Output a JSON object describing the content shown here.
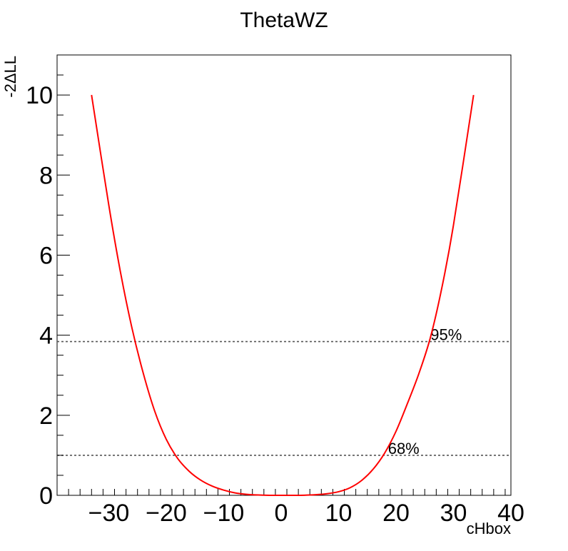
{
  "chart_data": {
    "type": "line",
    "title": "ThetaWZ",
    "xlabel": "cHbox",
    "ylabel": "-2ΔLL",
    "xlim": [
      -39,
      40
    ],
    "ylim": [
      0,
      11
    ],
    "grid": false,
    "xticks": [
      -30,
      -20,
      -10,
      0,
      10,
      20,
      30,
      40
    ],
    "xtick_labels": [
      "−30",
      "−20",
      "−10",
      "0",
      "10",
      "20",
      "30",
      "40"
    ],
    "yticks": [
      0,
      2,
      4,
      6,
      8,
      10
    ],
    "ytick_labels": [
      "0",
      "2",
      "4",
      "6",
      "8",
      "10"
    ],
    "series": [
      {
        "color": "#ff0000",
        "x": [
          -33,
          -30,
          -28,
          -26,
          -24,
          -22,
          -20,
          -18,
          -16,
          -14,
          -12,
          -10,
          -8,
          -6,
          -4,
          -2,
          0,
          2,
          4,
          6,
          8,
          10,
          12,
          14,
          16,
          18,
          20,
          22,
          24,
          26,
          28,
          30,
          33.5
        ],
        "y": [
          10.0,
          7.25,
          5.6,
          4.2,
          3.05,
          2.1,
          1.4,
          0.92,
          0.6,
          0.38,
          0.23,
          0.13,
          0.06,
          0.025,
          0.008,
          0.001,
          0.0,
          0.0,
          0.003,
          0.015,
          0.04,
          0.09,
          0.19,
          0.37,
          0.65,
          1.05,
          1.6,
          2.3,
          3.05,
          3.95,
          5.2,
          6.75,
          10.0
        ]
      }
    ],
    "reference_lines": [
      {
        "y": 3.84,
        "label": "95%",
        "color": "#555555"
      },
      {
        "y": 1.0,
        "label": "68%",
        "color": "#555555"
      }
    ]
  }
}
